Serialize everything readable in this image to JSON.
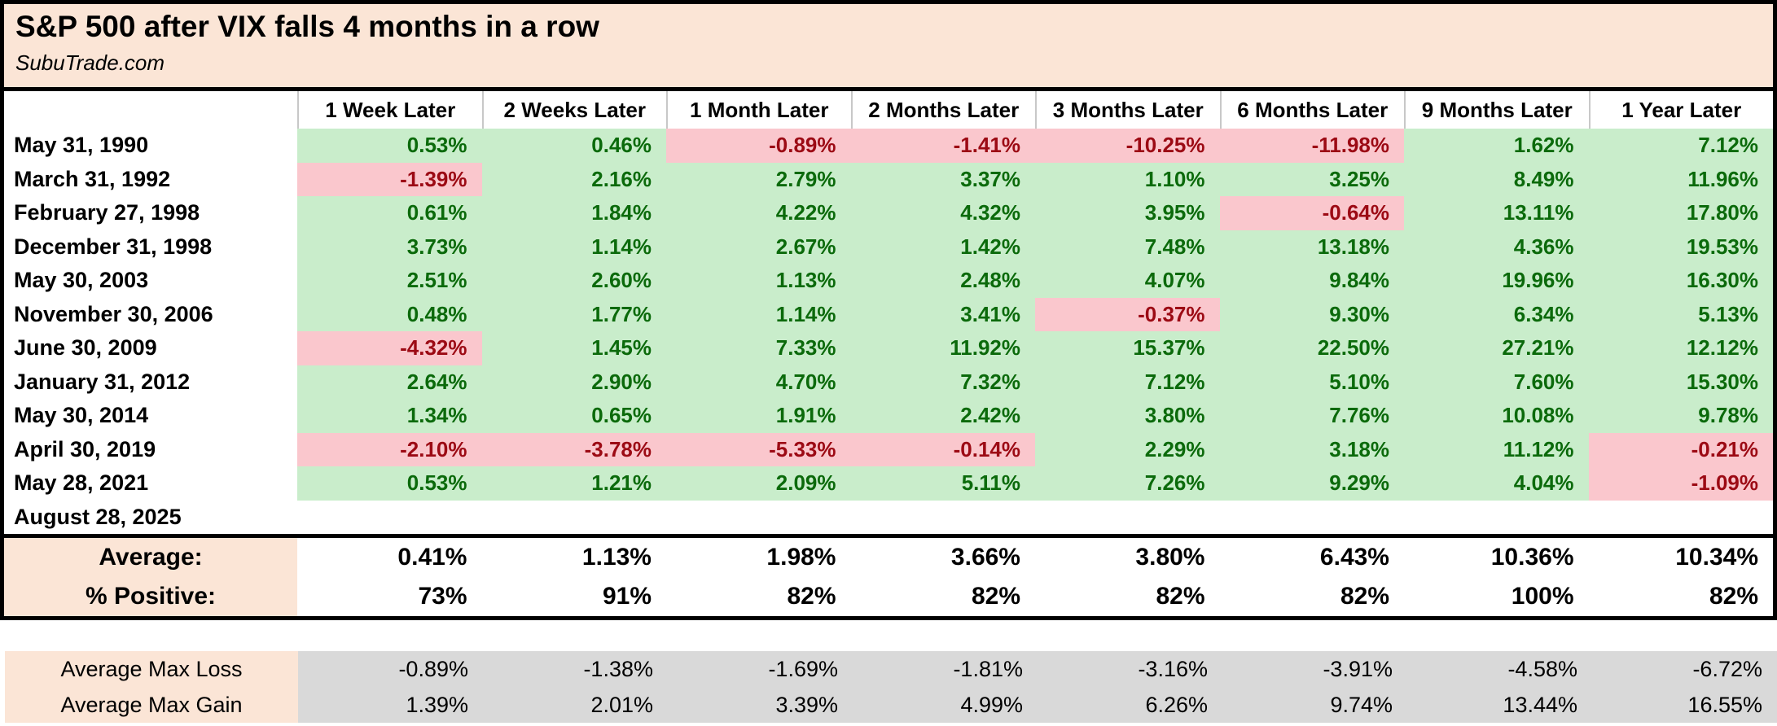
{
  "chart_data": {
    "type": "table",
    "title": "S&P 500 after VIX falls 4 months in a row",
    "subtitle": "SubuTrade.com",
    "columns": [
      "1 Week Later",
      "2 Weeks Later",
      "1 Month Later",
      "2 Months Later",
      "3 Months Later",
      "6 Months Later",
      "9 Months Later",
      "1 Year Later"
    ],
    "rows": [
      {
        "date": "May 31, 1990",
        "values": [
          "0.53%",
          "0.46%",
          "-0.89%",
          "-1.41%",
          "-10.25%",
          "-11.98%",
          "1.62%",
          "7.12%"
        ]
      },
      {
        "date": "March 31, 1992",
        "values": [
          "-1.39%",
          "2.16%",
          "2.79%",
          "3.37%",
          "1.10%",
          "3.25%",
          "8.49%",
          "11.96%"
        ]
      },
      {
        "date": "February 27, 1998",
        "values": [
          "0.61%",
          "1.84%",
          "4.22%",
          "4.32%",
          "3.95%",
          "-0.64%",
          "13.11%",
          "17.80%"
        ]
      },
      {
        "date": "December 31, 1998",
        "values": [
          "3.73%",
          "1.14%",
          "2.67%",
          "1.42%",
          "7.48%",
          "13.18%",
          "4.36%",
          "19.53%"
        ]
      },
      {
        "date": "May 30, 2003",
        "values": [
          "2.51%",
          "2.60%",
          "1.13%",
          "2.48%",
          "4.07%",
          "9.84%",
          "19.96%",
          "16.30%"
        ]
      },
      {
        "date": "November 30, 2006",
        "values": [
          "0.48%",
          "1.77%",
          "1.14%",
          "3.41%",
          "-0.37%",
          "9.30%",
          "6.34%",
          "5.13%"
        ]
      },
      {
        "date": "June 30, 2009",
        "values": [
          "-4.32%",
          "1.45%",
          "7.33%",
          "11.92%",
          "15.37%",
          "22.50%",
          "27.21%",
          "12.12%"
        ]
      },
      {
        "date": "January 31, 2012",
        "values": [
          "2.64%",
          "2.90%",
          "4.70%",
          "7.32%",
          "7.12%",
          "5.10%",
          "7.60%",
          "15.30%"
        ]
      },
      {
        "date": "May 30, 2014",
        "values": [
          "1.34%",
          "0.65%",
          "1.91%",
          "2.42%",
          "3.80%",
          "7.76%",
          "10.08%",
          "9.78%"
        ]
      },
      {
        "date": "April 30, 2019",
        "values": [
          "-2.10%",
          "-3.78%",
          "-5.33%",
          "-0.14%",
          "2.29%",
          "3.18%",
          "11.12%",
          "-0.21%"
        ]
      },
      {
        "date": "May 28, 2021",
        "values": [
          "0.53%",
          "1.21%",
          "2.09%",
          "5.11%",
          "7.26%",
          "9.29%",
          "4.04%",
          "-1.09%"
        ]
      },
      {
        "date": "August 28, 2025",
        "values": [
          "",
          "",
          "",
          "",
          "",
          "",
          "",
          ""
        ]
      }
    ],
    "summary": [
      {
        "label": "Average:",
        "values": [
          "0.41%",
          "1.13%",
          "1.98%",
          "3.66%",
          "3.80%",
          "6.43%",
          "10.36%",
          "10.34%"
        ]
      },
      {
        "label": "% Positive:",
        "values": [
          "73%",
          "91%",
          "82%",
          "82%",
          "82%",
          "82%",
          "100%",
          "82%"
        ]
      }
    ],
    "footer": [
      {
        "label": "Average Max Loss",
        "values": [
          "-0.89%",
          "-1.38%",
          "-1.69%",
          "-1.81%",
          "-3.16%",
          "-3.91%",
          "-4.58%",
          "-6.72%"
        ]
      },
      {
        "label": "Average Max Gain",
        "values": [
          "1.39%",
          "2.01%",
          "3.39%",
          "4.99%",
          "6.26%",
          "9.74%",
          "13.44%",
          "16.55%"
        ]
      }
    ],
    "layout_hints": {
      "positive_cells_highlighted": "green",
      "negative_cells_highlighted": "pink"
    }
  },
  "colors": {
    "peach": "#FBE5D6",
    "green_bg": "#C9EDCB",
    "green_text": "#0B6A0B",
    "red_bg": "#FAC7CD",
    "red_text": "#9C0A14",
    "gray_bg": "#D9D9D9",
    "border": "#000000"
  }
}
